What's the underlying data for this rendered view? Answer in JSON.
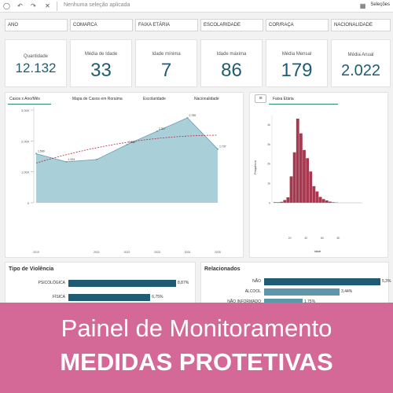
{
  "toolbar": {
    "no_selection": "Nenhuma seleção aplicada",
    "selections": "Seleções"
  },
  "filters": [
    "ANO",
    "COMARCA",
    "FAIXA ETÁRIA",
    "ESCOLARIDADE",
    "COR/RAÇA",
    "NACIONALIDADE"
  ],
  "kpis": [
    {
      "label": "Quantidade",
      "value": "12.132"
    },
    {
      "label": "Média de Idade",
      "value": "33"
    },
    {
      "label": "Idade mínima",
      "value": "7"
    },
    {
      "label": "Idade máxima",
      "value": "86"
    },
    {
      "label": "Média Mensal",
      "value": "179"
    },
    {
      "label": "Média Anual",
      "value": "2.022"
    }
  ],
  "line_panel": {
    "tabs": [
      "Casos x Ano/Mês",
      "Mapa de Casos em Roraima",
      "Escolaridade",
      "Nacionalidade"
    ]
  },
  "hist_panel": {
    "tab": "Faixa Etária"
  },
  "violence_panel": {
    "title": "Tipo de Violência",
    "rows": [
      {
        "label": "PSICOLÓGICA",
        "value": 8.87,
        "text": "8,87%"
      },
      {
        "label": "FÍSICA",
        "value": 6.75,
        "text": "6,75%"
      }
    ]
  },
  "related_panel": {
    "title": "Relacionados",
    "rows": [
      {
        "label": "NÃO",
        "value": 5.3,
        "text": "5,3%"
      },
      {
        "label": "ÁLCOOL",
        "value": 3.44,
        "text": "3,44%"
      },
      {
        "label": "NÃO INFORMADO",
        "value": 1.75,
        "text": "1,75%"
      }
    ]
  },
  "banner": {
    "line1": "Painel de Monitoramento",
    "line2": "MEDIDAS PROTETIVAS"
  },
  "chart_data": [
    {
      "type": "area",
      "x": [
        "2019",
        "2020",
        "2021",
        "2022",
        "2023",
        "2024",
        "2025"
      ],
      "values": [
        1590,
        1324,
        1402,
        1882,
        2317,
        2750,
        1737
      ],
      "data_labels": [
        "1.590",
        "1.324",
        "",
        "1.882",
        "2.317",
        "2.750",
        "1.737"
      ],
      "tick_labels_x": [
        "2019",
        "2021",
        "2022",
        "2023",
        "2024",
        "2025"
      ],
      "tick_labels_y": [
        "3.000",
        "2.000",
        "1.000",
        "0"
      ],
      "ylim": [
        0,
        3000
      ],
      "trendline": true,
      "colors": {
        "fill": "#a9cfd9",
        "line": "#6c9fae",
        "trend": "#b0283f"
      }
    },
    {
      "type": "bar",
      "title": "Faixa Etária",
      "xlabel": "Idade",
      "ylabel": "Frequência",
      "x_ticks": [
        "20",
        "40",
        "60",
        "80"
      ],
      "y_ticks": [
        "0",
        "1k",
        "2k",
        "3k",
        "4k"
      ],
      "ylim": [
        0,
        4500
      ],
      "bins": [
        {
          "x0": 0,
          "x1": 4,
          "value": 30
        },
        {
          "x0": 4,
          "x1": 8,
          "value": 30
        },
        {
          "x0": 8,
          "x1": 12,
          "value": 50
        },
        {
          "x0": 12,
          "x1": 16,
          "value": 140
        },
        {
          "x0": 16,
          "x1": 20,
          "value": 280
        },
        {
          "x0": 20,
          "x1": 24,
          "value": 1350
        },
        {
          "x0": 24,
          "x1": 28,
          "value": 2580
        },
        {
          "x0": 28,
          "x1": 32,
          "value": 4300
        },
        {
          "x0": 32,
          "x1": 36,
          "value": 3550
        },
        {
          "x0": 36,
          "x1": 40,
          "value": 2700
        },
        {
          "x0": 40,
          "x1": 44,
          "value": 2280
        },
        {
          "x0": 44,
          "x1": 48,
          "value": 1600
        },
        {
          "x0": 48,
          "x1": 52,
          "value": 850
        },
        {
          "x0": 52,
          "x1": 56,
          "value": 580
        },
        {
          "x0": 56,
          "x1": 60,
          "value": 300
        },
        {
          "x0": 60,
          "x1": 64,
          "value": 190
        },
        {
          "x0": 64,
          "x1": 68,
          "value": 120
        },
        {
          "x0": 68,
          "x1": 72,
          "value": 60
        },
        {
          "x0": 72,
          "x1": 76,
          "value": 30
        },
        {
          "x0": 76,
          "x1": 80,
          "value": 15
        }
      ],
      "colors": {
        "bar": "#a8384f"
      }
    }
  ]
}
